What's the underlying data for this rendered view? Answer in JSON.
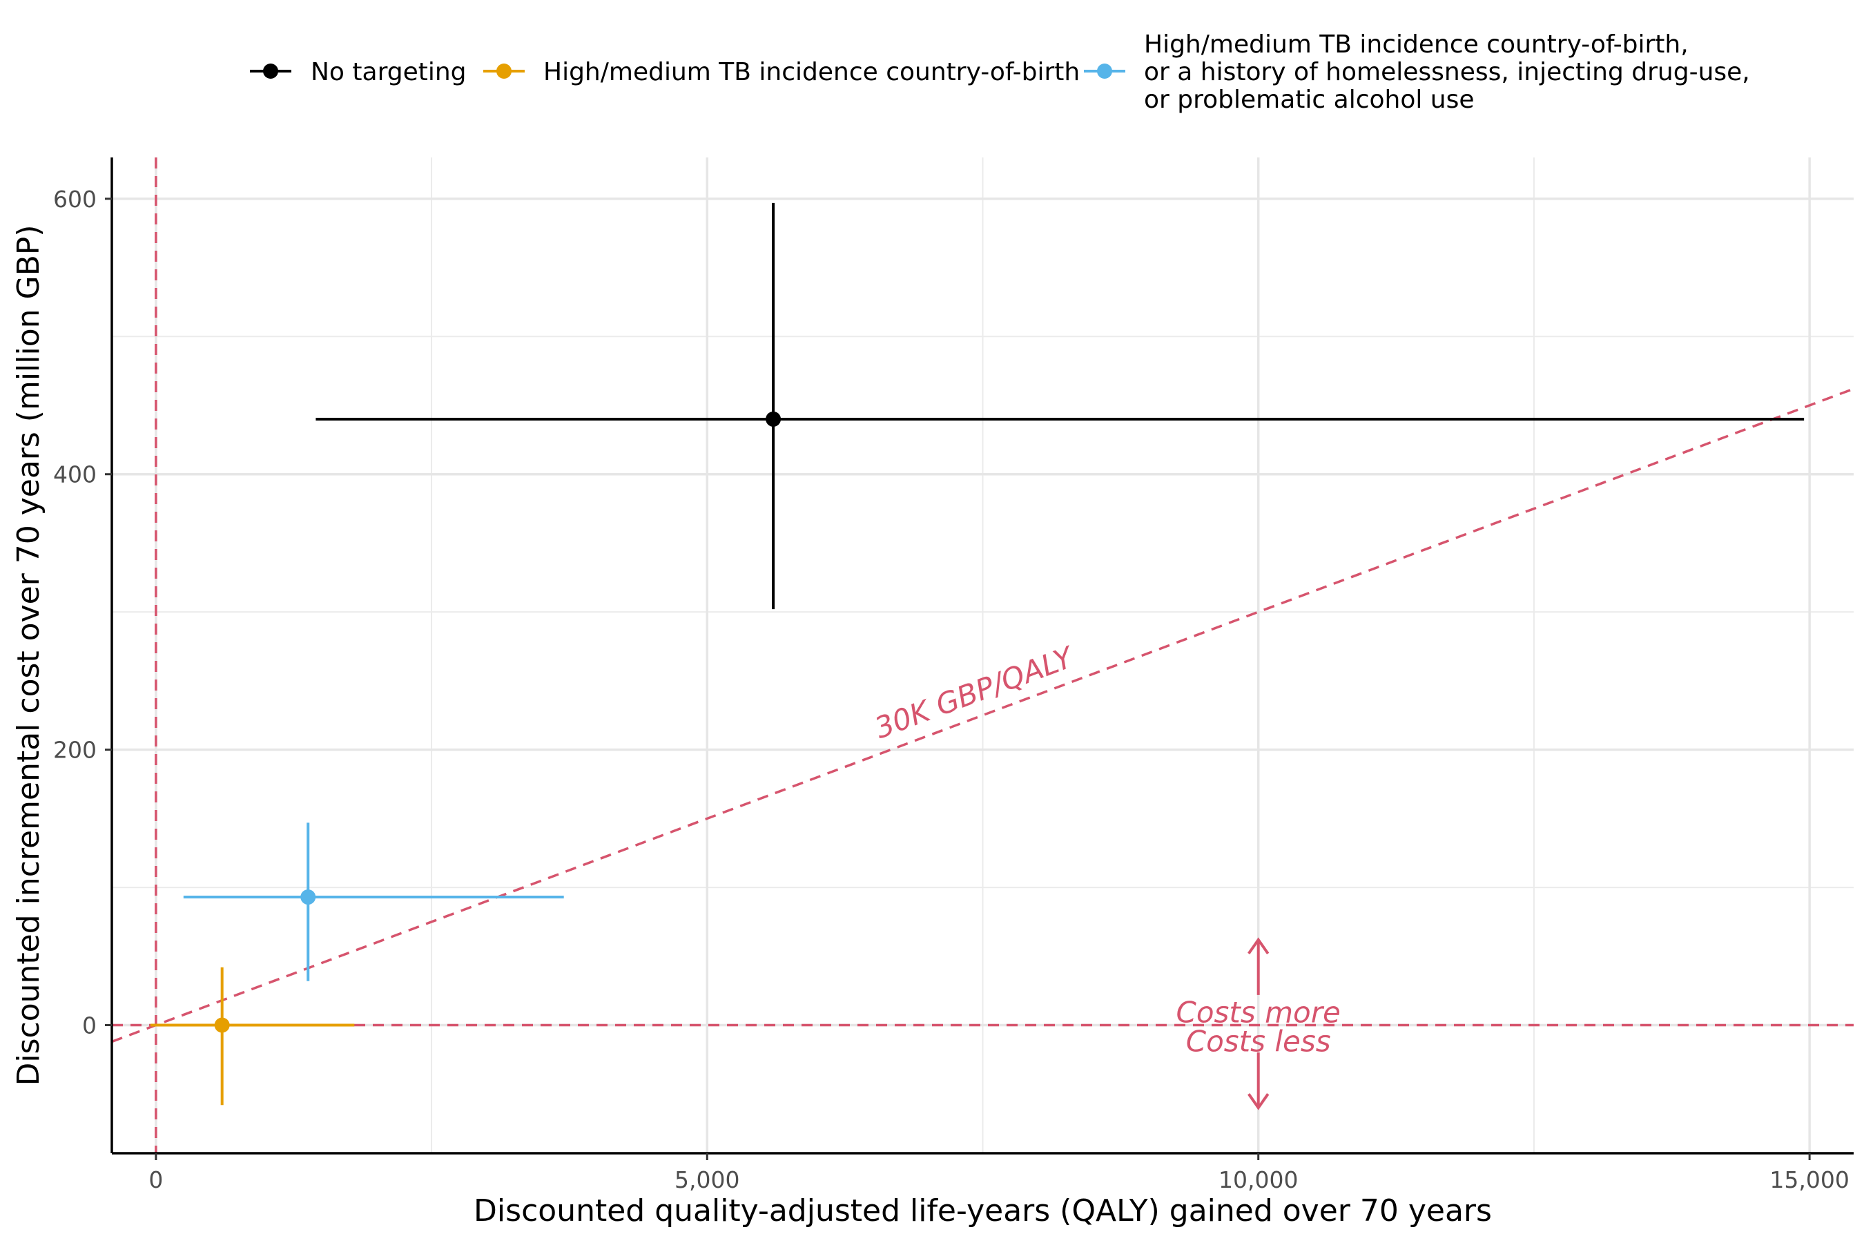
{
  "chart_data": {
    "type": "scatter",
    "xlabel": "Discounted quality-adjusted life-years (QALY) gained over 70 years",
    "ylabel": "Discounted incremental cost over 70 years (million GBP)",
    "xlim": [
      -400,
      15400
    ],
    "ylim": [
      -93,
      630
    ],
    "x_ticks": [
      {
        "value": 0,
        "label": "0"
      },
      {
        "value": 5000,
        "label": "5,000"
      },
      {
        "value": 10000,
        "label": "10,000"
      },
      {
        "value": 15000,
        "label": "15,000"
      }
    ],
    "y_ticks": [
      {
        "value": 0,
        "label": "0"
      },
      {
        "value": 200,
        "label": "200"
      },
      {
        "value": 400,
        "label": "400"
      },
      {
        "value": 600,
        "label": "600"
      }
    ],
    "x_minor": [
      2500,
      7500,
      12500
    ],
    "y_minor": [
      100,
      300,
      500
    ],
    "grid": true,
    "legend_position": "top",
    "series": [
      {
        "name": "No targeting",
        "color": "#000000",
        "x": 5600,
        "y": 440,
        "x_low": 1450,
        "x_high": 14950,
        "y_low": 302,
        "y_high": 597
      },
      {
        "name": "High/medium TB incidence country-of-birth",
        "color": "#E69F00",
        "x": 600,
        "y": 0,
        "x_low": -50,
        "x_high": 1800,
        "y_low": -58,
        "y_high": 42
      },
      {
        "name": "High/medium TB incidence country-of-birth,\nor a history of homelessness, injecting drug-use,\nor problematic alcohol use",
        "color": "#56B4E9",
        "x": 1380,
        "y": 93,
        "x_low": 250,
        "x_high": 3700,
        "y_low": 32,
        "y_high": 147
      }
    ],
    "reference_lines": {
      "color": "#D6546D",
      "vertical_x": 0,
      "horizontal_y": 0,
      "threshold_slope_per_qaly": 0.03
    },
    "annotations": {
      "threshold_label": "30K GBP/QALY",
      "costs_more": "Costs more",
      "costs_less": "Costs less",
      "arrow_x": 10000,
      "arrow_top_y": 62,
      "arrow_bottom_y": -60
    }
  }
}
